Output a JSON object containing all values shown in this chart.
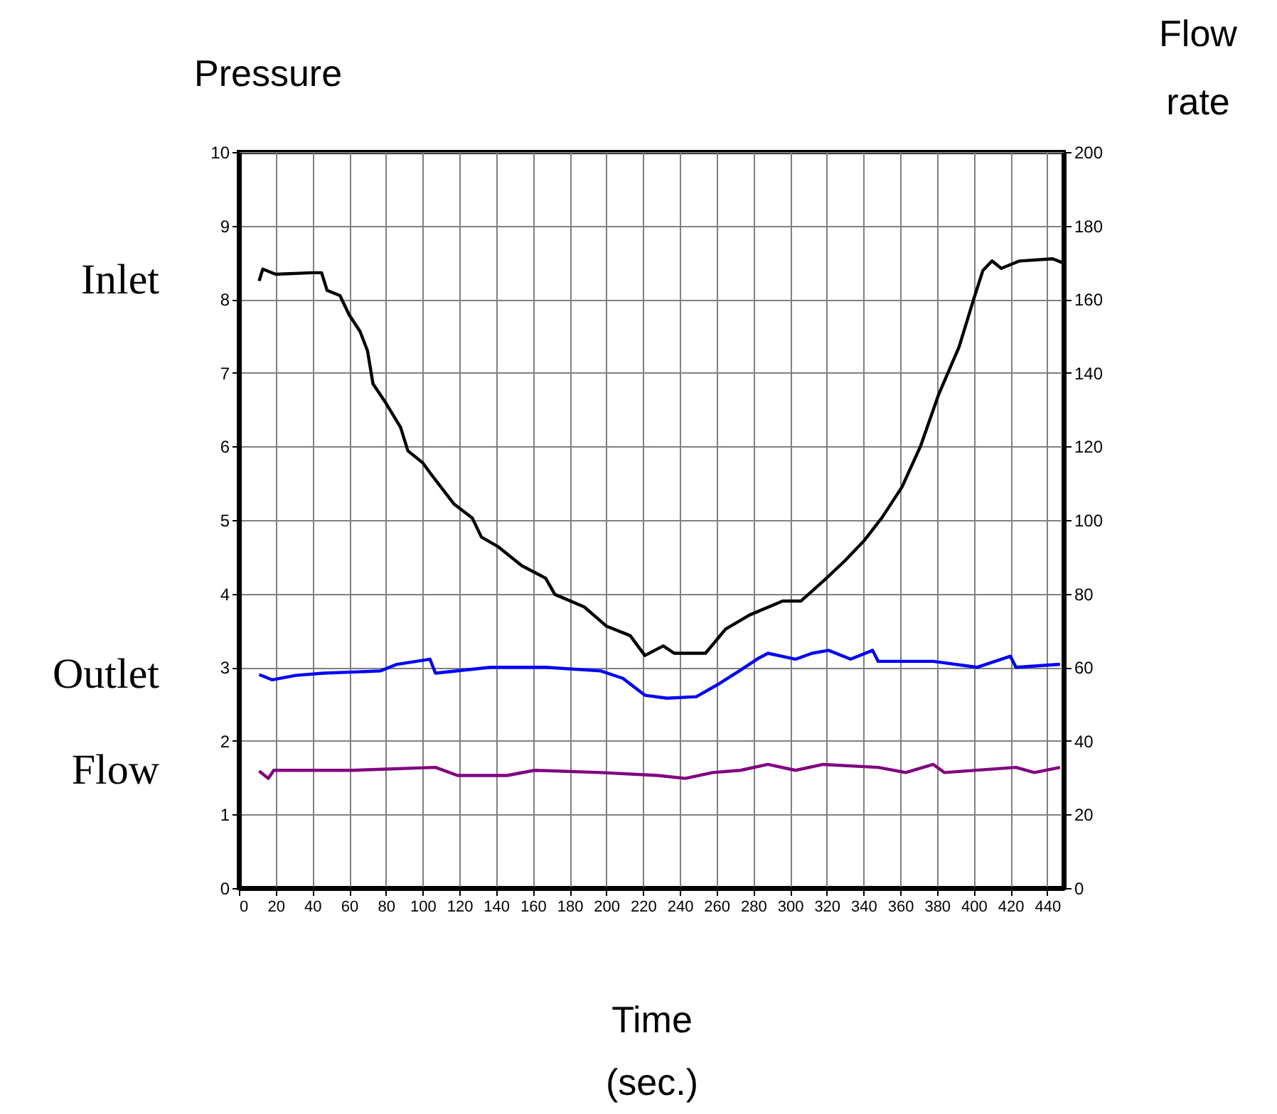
{
  "chart_data": {
    "type": "line",
    "xlabel": "Time (sec.)",
    "ylabel": "Pressure",
    "y2label": "Flow rate",
    "xlim": [
      0,
      449
    ],
    "xticks": [
      0,
      20,
      40,
      60,
      80,
      100,
      120,
      140,
      160,
      180,
      200,
      220,
      240,
      260,
      280,
      300,
      320,
      340,
      360,
      380,
      400,
      420,
      440
    ],
    "ylim": [
      0,
      10
    ],
    "yticks": [
      0,
      1,
      2,
      3,
      4,
      5,
      6,
      7,
      8,
      9,
      10
    ],
    "y2lim": [
      0,
      200
    ],
    "y2ticks": [
      0,
      20,
      40,
      60,
      80,
      100,
      120,
      140,
      160,
      180,
      200
    ],
    "grid": true,
    "marker": "none",
    "line_style": "solid",
    "series": [
      {
        "name": "Inlet",
        "color": "#000000",
        "x": [
          11,
          13,
          20,
          40,
          45,
          48,
          55,
          60,
          66,
          70,
          73,
          80,
          88,
          92,
          100,
          105,
          117,
          127,
          132,
          141,
          154,
          167,
          172,
          188,
          200,
          213,
          221,
          231,
          237,
          254,
          265,
          278,
          296,
          306,
          319,
          330,
          340,
          350,
          361,
          371,
          381,
          392,
          400,
          405,
          410,
          415,
          425,
          443,
          448
        ],
        "values": [
          8.25,
          8.41,
          8.34,
          8.36,
          8.36,
          8.12,
          8.05,
          7.79,
          7.56,
          7.3,
          6.85,
          6.59,
          6.26,
          5.94,
          5.78,
          5.61,
          5.22,
          5.03,
          4.77,
          4.64,
          4.38,
          4.21,
          3.99,
          3.82,
          3.56,
          3.43,
          3.16,
          3.29,
          3.19,
          3.19,
          3.52,
          3.71,
          3.9,
          3.9,
          4.19,
          4.45,
          4.71,
          5.03,
          5.45,
          6.0,
          6.71,
          7.35,
          8.0,
          8.39,
          8.52,
          8.42,
          8.52,
          8.55,
          8.5
        ]
      },
      {
        "name": "Outlet",
        "color": "#0000ff",
        "x": [
          11,
          18,
          31,
          46,
          77,
          86,
          104,
          107,
          137,
          167,
          197,
          209,
          221,
          233,
          249,
          261,
          273,
          282,
          288,
          303,
          312,
          321,
          333,
          345,
          348,
          378,
          402,
          420,
          423,
          447
        ],
        "values": [
          2.9,
          2.83,
          2.89,
          2.92,
          2.95,
          3.04,
          3.11,
          2.92,
          3.0,
          3.0,
          2.95,
          2.85,
          2.62,
          2.58,
          2.6,
          2.77,
          2.96,
          3.11,
          3.19,
          3.11,
          3.19,
          3.23,
          3.11,
          3.23,
          3.08,
          3.08,
          3.0,
          3.15,
          3.0,
          3.04
        ]
      },
      {
        "name": "Flow",
        "color": "#800080",
        "axis": "y2",
        "x": [
          11,
          16,
          19,
          62,
          107,
          119,
          146,
          161,
          197,
          228,
          243,
          258,
          273,
          288,
          303,
          318,
          348,
          363,
          378,
          384,
          423,
          433,
          447
        ],
        "values": [
          31.8,
          29.8,
          32,
          32,
          32.8,
          30.6,
          30.6,
          32,
          31.4,
          30.6,
          29.8,
          31.4,
          32,
          33.6,
          32,
          33.6,
          32.8,
          31.4,
          33.6,
          31.4,
          32.8,
          31.4,
          32.8
        ]
      }
    ]
  }
}
